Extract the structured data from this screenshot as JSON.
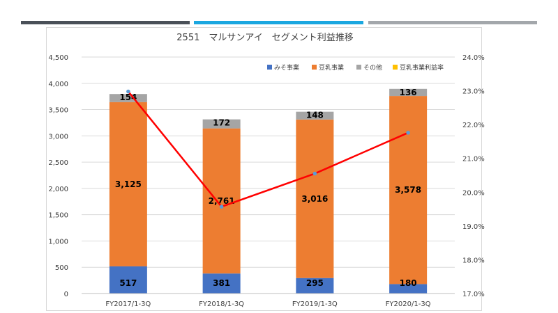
{
  "chart_data": {
    "type": "bar",
    "stacked": true,
    "title": "2551　マルサンアイ　セグメント利益推移",
    "categories": [
      "FY2017/1-3Q",
      "FY2018/1-3Q",
      "FY2019/1-3Q",
      "FY2020/1-3Q"
    ],
    "ylim": [
      0,
      4500
    ],
    "yticks": [
      "0",
      "500",
      "1,000",
      "1,500",
      "2,000",
      "2,500",
      "3,000",
      "3,500",
      "4,000",
      "4,500"
    ],
    "y2lim": [
      17.0,
      24.0
    ],
    "y2ticks": [
      "17.0%",
      "18.0%",
      "19.0%",
      "20.0%",
      "21.0%",
      "22.0%",
      "23.0%",
      "24.0%"
    ],
    "legend_position": "top-right",
    "series": [
      {
        "name": "みそ事業",
        "color": "#4472c4",
        "values": [
          517,
          381,
          295,
          180
        ],
        "labels": [
          "517",
          "381",
          "295",
          "180"
        ]
      },
      {
        "name": "豆乳事業",
        "color": "#ed7d31",
        "values": [
          3125,
          2761,
          3016,
          3578
        ],
        "labels": [
          "3,125",
          "2,761",
          "3,016",
          "3,578"
        ]
      },
      {
        "name": "その他",
        "color": "#a5a5a5",
        "values": [
          154,
          172,
          148,
          136
        ],
        "labels": [
          "154",
          "172",
          "148",
          "136"
        ]
      }
    ],
    "line_series": {
      "name": "豆乳事業利益率",
      "color": "#ff0000",
      "marker_color": "#5b9bd5",
      "legend_color": "#ffc000",
      "axis": "secondary",
      "values": [
        22.98,
        19.57,
        20.55,
        21.76
      ]
    }
  }
}
